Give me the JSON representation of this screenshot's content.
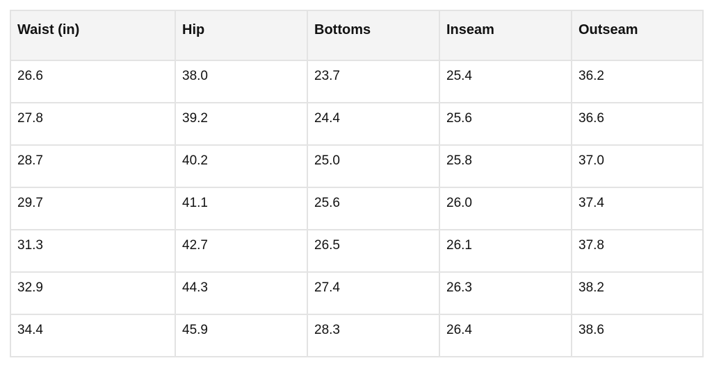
{
  "table": {
    "headers": [
      "Waist (in)",
      "Hip",
      "Bottoms",
      "Inseam",
      "Outseam"
    ],
    "rows": [
      [
        "26.6",
        "38.0",
        "23.7",
        "25.4",
        "36.2"
      ],
      [
        "27.8",
        "39.2",
        "24.4",
        "25.6",
        "36.6"
      ],
      [
        "28.7",
        "40.2",
        "25.0",
        "25.8",
        "37.0"
      ],
      [
        "29.7",
        "41.1",
        "25.6",
        "26.0",
        "37.4"
      ],
      [
        "31.3",
        "42.7",
        "26.5",
        "26.1",
        "37.8"
      ],
      [
        "32.9",
        "44.3",
        "27.4",
        "26.3",
        "38.2"
      ],
      [
        "34.4",
        "45.9",
        "28.3",
        "26.4",
        "38.6"
      ]
    ]
  },
  "colors": {
    "header_background": "#f4f4f4",
    "border": "#e3e3e3",
    "text": "#111111"
  }
}
